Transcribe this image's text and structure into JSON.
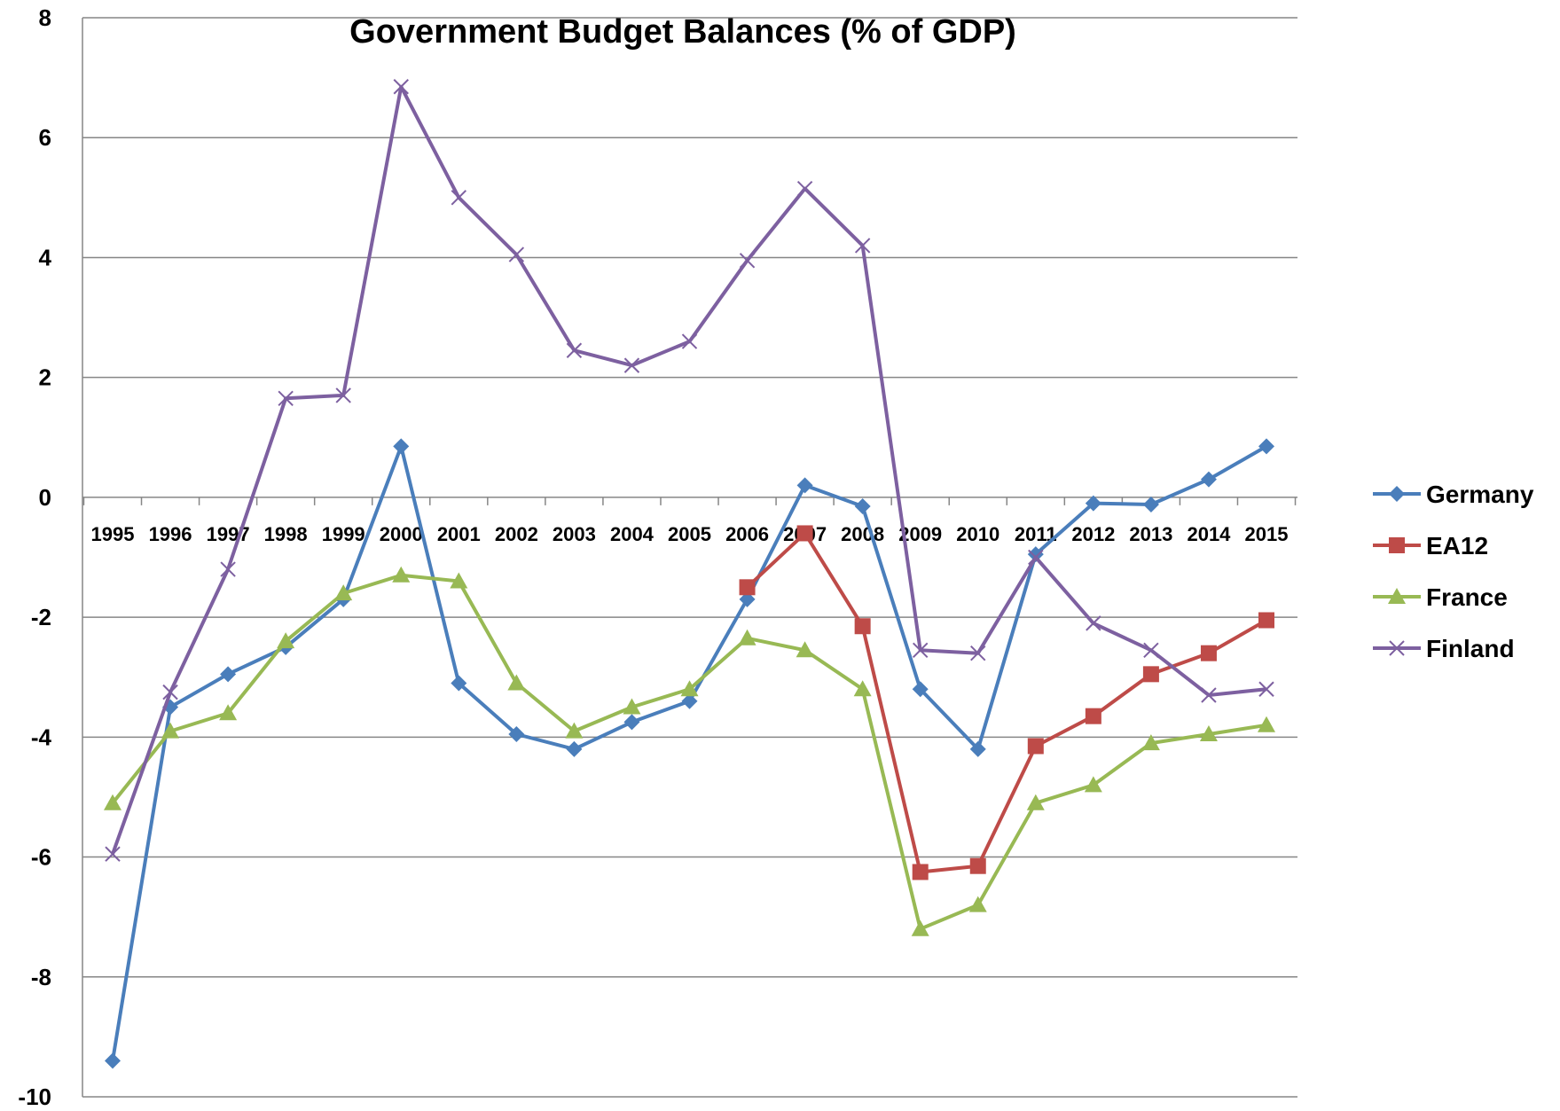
{
  "chart_data": {
    "type": "line",
    "title": "Government Budget Balances (% of GDP)",
    "xlabel": "",
    "ylabel": "",
    "ylim": [
      -10,
      8
    ],
    "yticks": [
      8,
      6,
      4,
      2,
      0,
      -2,
      -4,
      -6,
      -8,
      -10
    ],
    "categories": [
      "1995",
      "1996",
      "1997",
      "1998",
      "1999",
      "2000",
      "2001",
      "2002",
      "2003",
      "2004",
      "2005",
      "2006",
      "2007",
      "2008",
      "2009",
      "2010",
      "2011",
      "2012",
      "2013",
      "2014",
      "2015"
    ],
    "grid": "horizontal",
    "legend_position": "right",
    "series": [
      {
        "name": "Germany",
        "color": "#4a7ebb",
        "marker": "diamond",
        "values": [
          -9.4,
          -3.5,
          -2.95,
          -2.5,
          -1.7,
          0.85,
          -3.1,
          -3.95,
          -4.2,
          -3.75,
          -3.4,
          -1.7,
          0.2,
          -0.15,
          -3.2,
          -4.2,
          -0.95,
          -0.1,
          -0.12,
          0.3,
          0.85
        ]
      },
      {
        "name": "EA12",
        "color": "#be4b48",
        "marker": "square",
        "values": [
          null,
          null,
          null,
          null,
          null,
          null,
          null,
          null,
          null,
          null,
          null,
          -1.5,
          -0.6,
          -2.15,
          -6.25,
          -6.15,
          -4.15,
          -3.65,
          -2.95,
          -2.6,
          -2.05
        ]
      },
      {
        "name": "France",
        "color": "#98b954",
        "marker": "triangle",
        "values": [
          -5.1,
          -3.9,
          -3.6,
          -2.4,
          -1.6,
          -1.3,
          -1.4,
          -3.1,
          -3.9,
          -3.5,
          -3.2,
          -2.35,
          -2.55,
          -3.2,
          -7.2,
          -6.8,
          -5.1,
          -4.8,
          -4.1,
          -3.95,
          -3.8
        ]
      },
      {
        "name": "Finland",
        "color": "#7d60a0",
        "marker": "x",
        "values": [
          -5.95,
          -3.25,
          -1.2,
          1.65,
          1.7,
          6.85,
          5.0,
          4.05,
          2.45,
          2.2,
          2.6,
          3.95,
          5.15,
          4.2,
          -2.55,
          -2.6,
          -1.0,
          -2.1,
          -2.55,
          -3.3,
          -3.2
        ]
      }
    ]
  }
}
